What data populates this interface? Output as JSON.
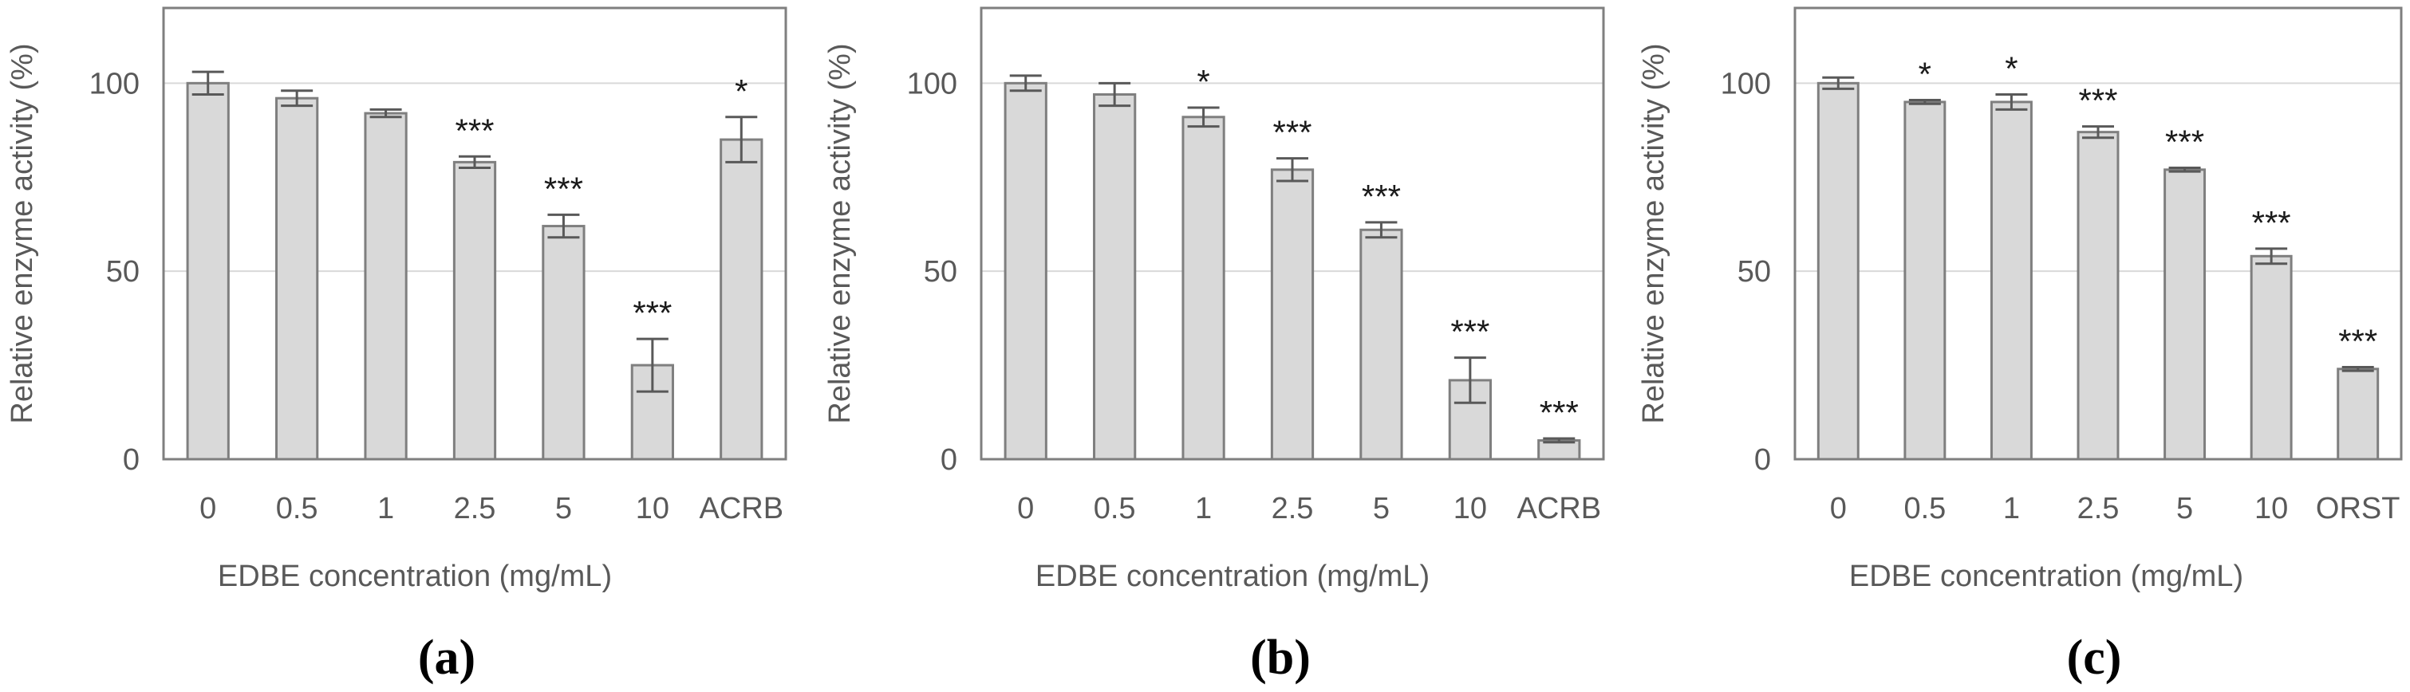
{
  "chart_data": [
    {
      "type": "bar",
      "panel_label": "(a)",
      "categories": [
        "0",
        "0.5",
        "1",
        "2.5",
        "5",
        "10",
        "ACRB"
      ],
      "values": [
        100,
        96,
        92,
        79,
        62,
        25,
        85
      ],
      "errors": [
        3,
        2,
        1,
        1.5,
        3,
        7,
        6
      ],
      "significance": [
        "",
        "",
        "",
        "***",
        "***",
        "***",
        "*"
      ],
      "xlabel": "EDBE concentration (mg/mL)",
      "ylabel": "Relative enzyme activity (%)",
      "ylim": [
        0,
        120
      ],
      "yticks": [
        0,
        50,
        100
      ],
      "grid": true
    },
    {
      "type": "bar",
      "panel_label": "(b)",
      "categories": [
        "0",
        "0.5",
        "1",
        "2.5",
        "5",
        "10",
        "ACRB"
      ],
      "values": [
        100,
        97,
        91,
        77,
        61,
        21,
        5
      ],
      "errors": [
        2,
        3,
        2.5,
        3,
        2,
        6,
        0.5
      ],
      "significance": [
        "",
        "",
        "*",
        "***",
        "***",
        "***",
        "***"
      ],
      "xlabel": "EDBE concentration (mg/mL)",
      "ylabel": "Relative enzyme activity (%)",
      "ylim": [
        0,
        120
      ],
      "yticks": [
        0,
        50,
        100
      ],
      "grid": true
    },
    {
      "type": "bar",
      "panel_label": "(c)",
      "categories": [
        "0",
        "0.5",
        "1",
        "2.5",
        "5",
        "10",
        "ORST"
      ],
      "values": [
        100,
        95,
        95,
        87,
        77,
        54,
        24
      ],
      "errors": [
        1.5,
        0.5,
        2,
        1.5,
        0.5,
        2,
        0.5
      ],
      "significance": [
        "",
        "*",
        "*",
        "***",
        "***",
        "***",
        "***"
      ],
      "xlabel": "EDBE concentration (mg/mL)",
      "ylabel": "Relative enzyme activity (%)",
      "ylim": [
        0,
        120
      ],
      "yticks": [
        0,
        50,
        100
      ],
      "grid": true
    }
  ]
}
